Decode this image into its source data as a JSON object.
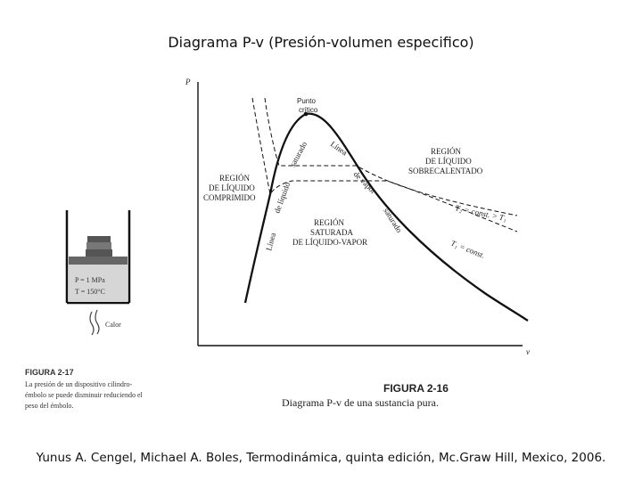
{
  "slide": {
    "title": "Diagrama P-v (Presión-volumen especifico)",
    "citation": "Yunus A. Cengel,  Michael A. Boles, Termodinámica, quinta edición, Mc.Graw Hill, Mexico, 2006."
  },
  "diagram": {
    "axis_p": "P",
    "axis_v": "v",
    "critical_point": [
      "Punto",
      "crítico"
    ],
    "region_compressed": [
      "REGIÓN",
      "DE LÍQUIDO",
      "COMPRIMIDO"
    ],
    "region_superheated": [
      "REGIÓN",
      "DE LÍQUIDO",
      "SOBRECALENTADO"
    ],
    "region_saturated": [
      "REGIÓN",
      "SATURADA",
      "DE LÍQUIDO-VAPOR"
    ],
    "line_saturated_liquid": [
      "Línea",
      "de líquido",
      "saturado"
    ],
    "line_saturated_vapor": [
      "Línea",
      "de vapor",
      "saturado"
    ],
    "isotherm_2": "T₂ = const. > T₁",
    "isotherm_1": "T₁ = const.",
    "figure_label": "FIGURA 2-16",
    "figure_caption": "Diagrama P-v de una sustancia pura."
  },
  "piston": {
    "pressure": "P = 1 MPa",
    "temperature": "T = 150°C",
    "heat": "Calor",
    "figure_label": "FIGURA 2-17",
    "caption": [
      "La presión de un dispositivo cilindro-",
      "émbolo se puede disminuir reduciendo el",
      "peso del émbolo."
    ]
  }
}
